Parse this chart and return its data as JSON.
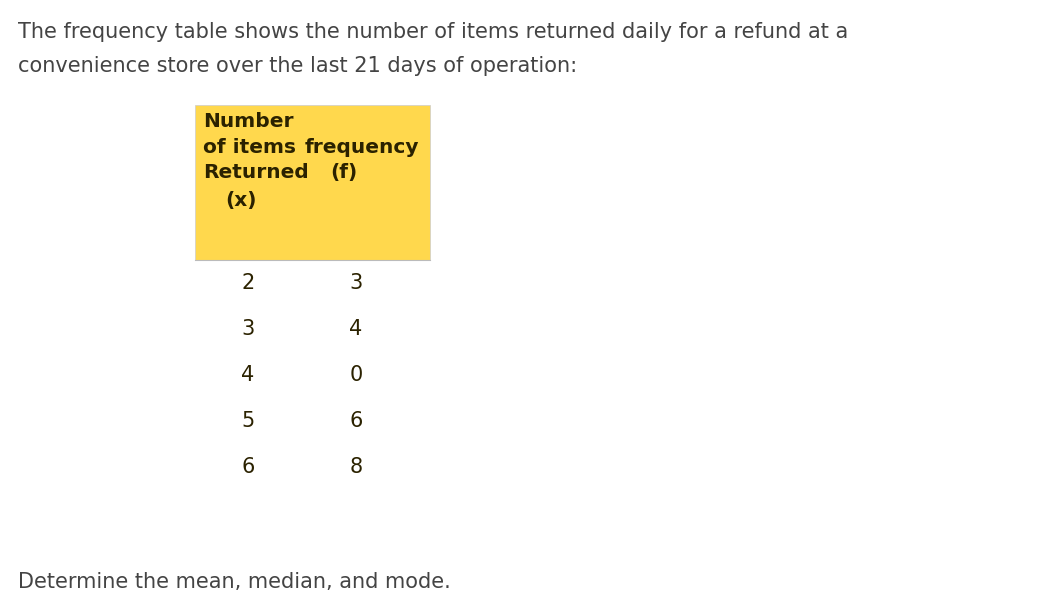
{
  "intro_text_line1": "The frequency table shows the number of items returned daily for a refund at a",
  "intro_text_line2": "convenience store over the last 21 days of operation:",
  "footer_text": "Determine the mean, median, and mode.",
  "x_values": [
    2,
    3,
    4,
    5,
    6
  ],
  "f_values": [
    3,
    4,
    0,
    6,
    8
  ],
  "header_bg_color": "#FFD84D",
  "header_text_color": "#2B2200",
  "data_text_color": "#2B2200",
  "bg_color": "#ffffff",
  "intro_fontsize": 15.0,
  "header_fontsize": 14.5,
  "data_fontsize": 15.0,
  "footer_fontsize": 15.0
}
